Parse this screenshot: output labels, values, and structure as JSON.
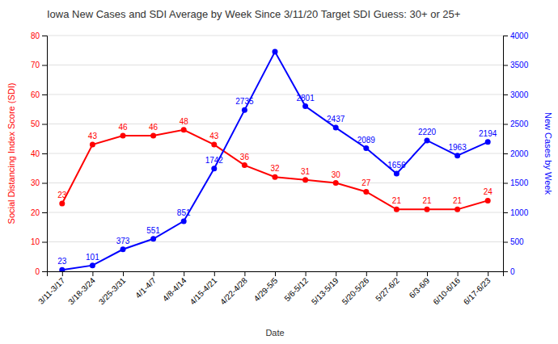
{
  "chart_data": {
    "type": "line",
    "title": "Iowa New Cases and SDI Average by Week Since 3/11/20 Target SDI Guess: 30+ or 25+",
    "xlabel": "Date",
    "ylabel": "Social Distancing Index Score (SDI)",
    "y2label": "New Cases by Week",
    "categories": [
      "3/11-3/17",
      "3/18-3/24",
      "3/25-3/31",
      "4/1-4/7",
      "4/8-4/14",
      "4/15-4/21",
      "4/22-4/28",
      "4/29-5/5",
      "5/6-5/12",
      "5/13-5/19",
      "5/20-5/26",
      "5/27-6/2",
      "6/3-6/9",
      "6/10-6/16",
      "6/17-6/23"
    ],
    "series": [
      {
        "color": "red",
        "marker": "circle",
        "data_labels": true,
        "values": [
          23,
          43,
          46,
          46,
          48,
          43,
          36,
          32,
          31,
          30,
          27,
          21,
          21,
          21,
          24
        ]
      },
      {
        "color": "blue",
        "marker": "circle",
        "axis": "y2",
        "data_labels": true,
        "values": [
          23,
          101,
          373,
          551,
          851,
          1742,
          2735,
          3726,
          2801,
          2437,
          2089,
          1656,
          2220,
          1963,
          2194
        ],
        "value_labels": [
          "23",
          "101",
          "373",
          "551",
          "851",
          "1742",
          "2735",
          null,
          "2801",
          "2437",
          "2089",
          "1656",
          "2220",
          "1963",
          "2194"
        ]
      }
    ],
    "ylim": [
      0,
      80
    ],
    "yticks": [
      0,
      10,
      20,
      30,
      40,
      50,
      60,
      70,
      80
    ],
    "y2lim": [
      0,
      4000
    ],
    "y2ticks": [
      0,
      500,
      1000,
      1500,
      2000,
      2500,
      3000,
      3500,
      4000
    ],
    "grid": true
  }
}
